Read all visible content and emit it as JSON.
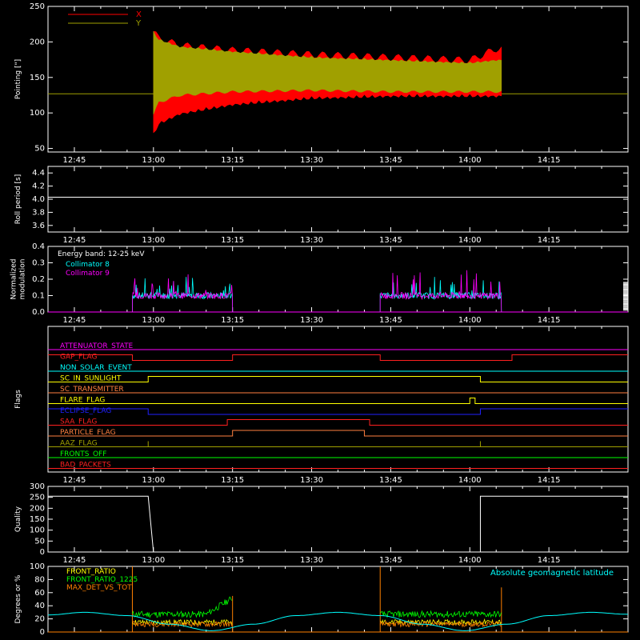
{
  "chart_data": [
    {
      "id": "pointing",
      "type": "line",
      "ylabel": "Pointing [\"]",
      "ylim": [
        45,
        250
      ],
      "yticks": [
        50,
        100,
        150,
        200,
        250
      ],
      "xlim": [
        "12:40",
        "14:30"
      ],
      "legend": [
        {
          "name": "X",
          "color": "#ff0000"
        },
        {
          "name": "Y",
          "color": "#a0a000"
        }
      ],
      "baseline": 127,
      "series": [
        {
          "name": "X",
          "color": "#ff0000",
          "x": [
            "13:00",
            "13:01",
            "13:05",
            "13:15",
            "13:30",
            "13:45",
            "14:00",
            "14:05"
          ],
          "low": [
            72,
            88,
            102,
            115,
            124,
            127,
            127,
            127
          ],
          "high": [
            215,
            205,
            195,
            188,
            182,
            178,
            174,
            190
          ]
        },
        {
          "name": "Y",
          "color": "#a0a000",
          "x": [
            "13:00",
            "13:01",
            "13:05",
            "13:15",
            "13:30",
            "13:45",
            "14:00",
            "14:05"
          ],
          "low": [
            98,
            115,
            125,
            130,
            132,
            130,
            130,
            130
          ],
          "high": [
            215,
            205,
            195,
            188,
            180,
            176,
            172,
            176
          ]
        }
      ]
    },
    {
      "id": "roll",
      "type": "line",
      "ylabel": "Roll period [s]",
      "ylim": [
        3.5,
        4.5
      ],
      "yticks": [
        "3.6",
        "3.8",
        "4.0",
        "4.2",
        "4.4"
      ],
      "series": [
        {
          "name": "",
          "color": "#ffffff",
          "x": [
            "12:40",
            "14:30"
          ],
          "y": [
            4.03,
            4.03
          ]
        }
      ]
    },
    {
      "id": "modulation",
      "type": "line",
      "ylabel": "Normalized\nmodulation",
      "ylim": [
        0,
        0.4
      ],
      "yticks": [
        "0.0",
        "0.1",
        "0.2",
        "0.3",
        "0.4"
      ],
      "annotation": "Energy band: 12-25 keV",
      "legend": [
        {
          "name": "Collimator 8",
          "color": "#00ffff"
        },
        {
          "name": "Collimator 9",
          "color": "#ff00ff"
        }
      ],
      "active_intervals": [
        [
          "12:56",
          "13:15"
        ],
        [
          "13:43",
          "14:06"
        ]
      ],
      "base_level": 0.1
    },
    {
      "id": "flags",
      "type": "line",
      "ylabel": "Flags",
      "flags": [
        {
          "name": "ATTENUATOR_STATE",
          "color": "#ff00ff",
          "steps": [
            [
              "12:40",
              0
            ],
            [
              "14:30",
              0
            ]
          ]
        },
        {
          "name": "GAP_FLAG",
          "color": "#ff2020",
          "steps": [
            [
              "12:40",
              1
            ],
            [
              "12:56",
              0
            ],
            [
              "13:15",
              1
            ],
            [
              "13:43",
              0
            ],
            [
              "14:08",
              1
            ]
          ]
        },
        {
          "name": "NON_SOLAR_EVENT",
          "color": "#00ffff",
          "steps": [
            [
              "12:40",
              0
            ],
            [
              "14:30",
              0
            ]
          ]
        },
        {
          "name": "SC_IN_SUNLIGHT",
          "color": "#ffff00",
          "steps": [
            [
              "12:40",
              0
            ],
            [
              "12:59",
              1
            ],
            [
              "14:02",
              0
            ]
          ]
        },
        {
          "name": "SC_TRANSMITTER",
          "color": "#ff8040",
          "steps": [
            [
              "12:40",
              0
            ],
            [
              "14:30",
              0
            ]
          ]
        },
        {
          "name": "FLARE_FLAG",
          "color": "#ffff00",
          "steps": [
            [
              "12:40",
              0
            ],
            [
              "14:00",
              1
            ],
            [
              "14:01",
              0
            ]
          ]
        },
        {
          "name": "ECLIPSE_FLAG",
          "color": "#2020ff",
          "steps": [
            [
              "12:40",
              1
            ],
            [
              "12:59",
              0
            ],
            [
              "14:02",
              1
            ]
          ]
        },
        {
          "name": "SAA_FLAG",
          "color": "#ff2020",
          "steps": [
            [
              "12:40",
              0
            ],
            [
              "13:14",
              1
            ],
            [
              "13:41",
              0
            ]
          ]
        },
        {
          "name": "PARTICLE_FLAG",
          "color": "#ff8040",
          "steps": [
            [
              "12:40",
              0
            ],
            [
              "13:15",
              1
            ],
            [
              "13:40",
              0
            ]
          ]
        },
        {
          "name": "AAZ_FLAG",
          "color": "#a0a000",
          "steps": [
            [
              "12:40",
              0
            ],
            [
              "12:59",
              1
            ],
            [
              "12:59",
              0
            ],
            [
              "14:02",
              1
            ],
            [
              "14:02",
              0
            ]
          ]
        },
        {
          "name": "FRONTS_OFF",
          "color": "#00ff00",
          "steps": [
            [
              "12:40",
              0
            ],
            [
              "14:30",
              0
            ]
          ]
        },
        {
          "name": "BAD_PACKETS",
          "color": "#ff2020",
          "steps": [
            [
              "12:40",
              0
            ],
            [
              "14:30",
              0
            ]
          ]
        }
      ]
    },
    {
      "id": "quality",
      "type": "line",
      "ylabel": "Quality",
      "ylim": [
        0,
        300
      ],
      "yticks": [
        "0",
        "50",
        "100",
        "150",
        "200",
        "250",
        "300"
      ],
      "series": [
        {
          "name": "",
          "color": "#ffffff",
          "x": [
            "12:40",
            "12:59",
            "13:00",
            "14:02",
            "14:02",
            "14:30"
          ],
          "y": [
            255,
            255,
            0,
            0,
            255,
            255
          ]
        }
      ]
    },
    {
      "id": "degrees",
      "type": "line",
      "ylabel": "Degrees or %",
      "ylim": [
        0,
        100
      ],
      "yticks": [
        "0",
        "20",
        "40",
        "60",
        "80",
        "100"
      ],
      "legend": [
        {
          "name": "FRONT_RATIO",
          "color": "#ffff00"
        },
        {
          "name": "FRONT_RATIO_1225",
          "color": "#00ff00"
        },
        {
          "name": "MAX_DET_VS_TOT",
          "color": "#ff8000"
        }
      ],
      "annotation": "Absolute geomagnetic latitude",
      "annotation_color": "#00ffff",
      "series": [
        {
          "name": "Absolute geomagnetic latitude",
          "color": "#00ffff",
          "x": [
            "12:40",
            "12:47",
            "12:55",
            "13:03",
            "13:11",
            "13:19",
            "13:27",
            "13:35",
            "13:43",
            "13:51",
            "13:59",
            "14:07",
            "14:15",
            "14:23",
            "14:30"
          ],
          "y": [
            26,
            30,
            25,
            12,
            2,
            12,
            25,
            30,
            25,
            12,
            2,
            12,
            25,
            30,
            27
          ]
        }
      ],
      "active_intervals": [
        [
          "12:56",
          "13:15"
        ],
        [
          "13:43",
          "14:06"
        ]
      ]
    }
  ],
  "xticks": [
    "12:45",
    "13:00",
    "13:15",
    "13:30",
    "13:45",
    "14:00",
    "14:15"
  ]
}
